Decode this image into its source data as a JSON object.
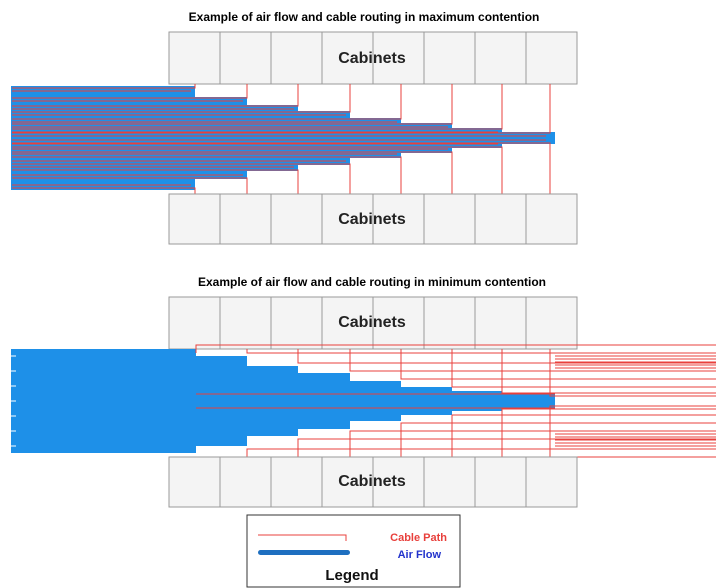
{
  "diagram1": {
    "title": "Example of air flow and cable routing in maximum contention",
    "top_cabinet_label": "Cabinets",
    "bottom_cabinet_label": "Cabinets"
  },
  "diagram2": {
    "title": "Example of air flow and cable routing in minimum contention",
    "top_cabinet_label": "Cabinets",
    "bottom_cabinet_label": "Cabinets"
  },
  "legend": {
    "cable_label": "Cable Path",
    "air_label": "Air Flow",
    "title": "Legend"
  },
  "colors": {
    "air": "#1e90e8",
    "cable": "#e8403c",
    "cabinet_fill": "#f4f4f4",
    "cabinet_stroke": "#9a9a9a",
    "cable_text": "#e8403c",
    "air_text": "#2233cc"
  }
}
